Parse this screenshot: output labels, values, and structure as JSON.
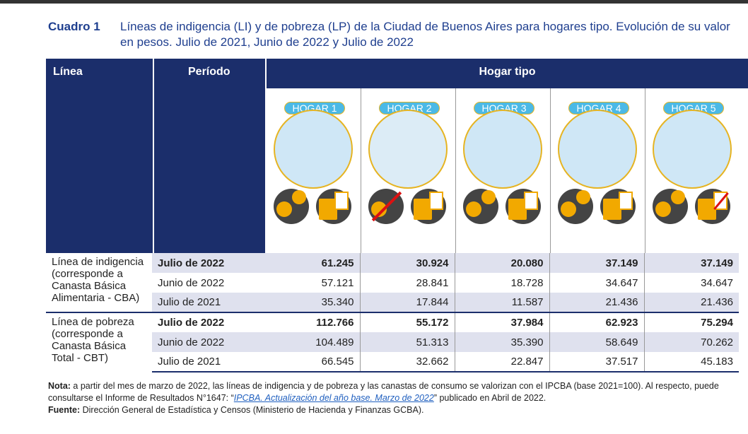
{
  "caption": {
    "label": "Cuadro 1",
    "text": "Líneas de indigencia (LI) y de pobreza (LP) de la Ciudad de Buenos Aires para hogares tipo. Evolución de su valor en pesos. Julio de 2021, Junio de 2022 y Julio de 2022"
  },
  "headers": {
    "linea": "Línea",
    "periodo": "Período",
    "hogar_tipo": "Hogar tipo"
  },
  "hogares": [
    {
      "label": "HOGAR 1",
      "icon": "family-four"
    },
    {
      "label": "HOGAR 2",
      "icon": "elderly-couple"
    },
    {
      "label": "HOGAR 3",
      "icon": "single-man"
    },
    {
      "label": "HOGAR 4",
      "icon": "couple"
    },
    {
      "label": "HOGAR 5",
      "icon": "couple"
    }
  ],
  "groups": [
    {
      "label": "Línea de indigencia (corresponde a Canasta Básica Alimentaria - CBA)",
      "rows": [
        {
          "period": "Julio de 2022",
          "values": [
            "61.245",
            "30.924",
            "20.080",
            "37.149",
            "37.149"
          ]
        },
        {
          "period": "Junio de 2022",
          "values": [
            "57.121",
            "28.841",
            "18.728",
            "34.647",
            "34.647"
          ]
        },
        {
          "period": "Julio de 2021",
          "values": [
            "35.340",
            "17.844",
            "11.587",
            "21.436",
            "21.436"
          ]
        }
      ]
    },
    {
      "label": "Línea de pobreza (corresponde a Canasta Básica Total - CBT)",
      "rows": [
        {
          "period": "Julio de 2022",
          "values": [
            "112.766",
            "55.172",
            "37.984",
            "62.923",
            "75.294"
          ]
        },
        {
          "period": "Junio de 2022",
          "values": [
            "104.489",
            "51.313",
            "35.390",
            "58.649",
            "70.262"
          ]
        },
        {
          "period": "Julio de 2021",
          "values": [
            "66.545",
            "32.662",
            "22.847",
            "37.517",
            "45.183"
          ]
        }
      ]
    }
  ],
  "notes": {
    "nota_label": "Nota:",
    "nota_text1": " a partir del mes de marzo de 2022, las líneas de indigencia y de pobreza y las canastas de consumo se valorizan con el IPCBA (base 2021=100). Al respecto, puede consultarse el Informe de Resultados N°1647: “",
    "nota_link": "IPCBA. Actualización del año base. Marzo de 2022",
    "nota_text2": "” publicado en Abril de 2022.",
    "fuente_label": "Fuente:",
    "fuente_text": " Dirección General de Estadística y Censos (Ministerio de Hacienda y Finanzas GCBA)."
  }
}
